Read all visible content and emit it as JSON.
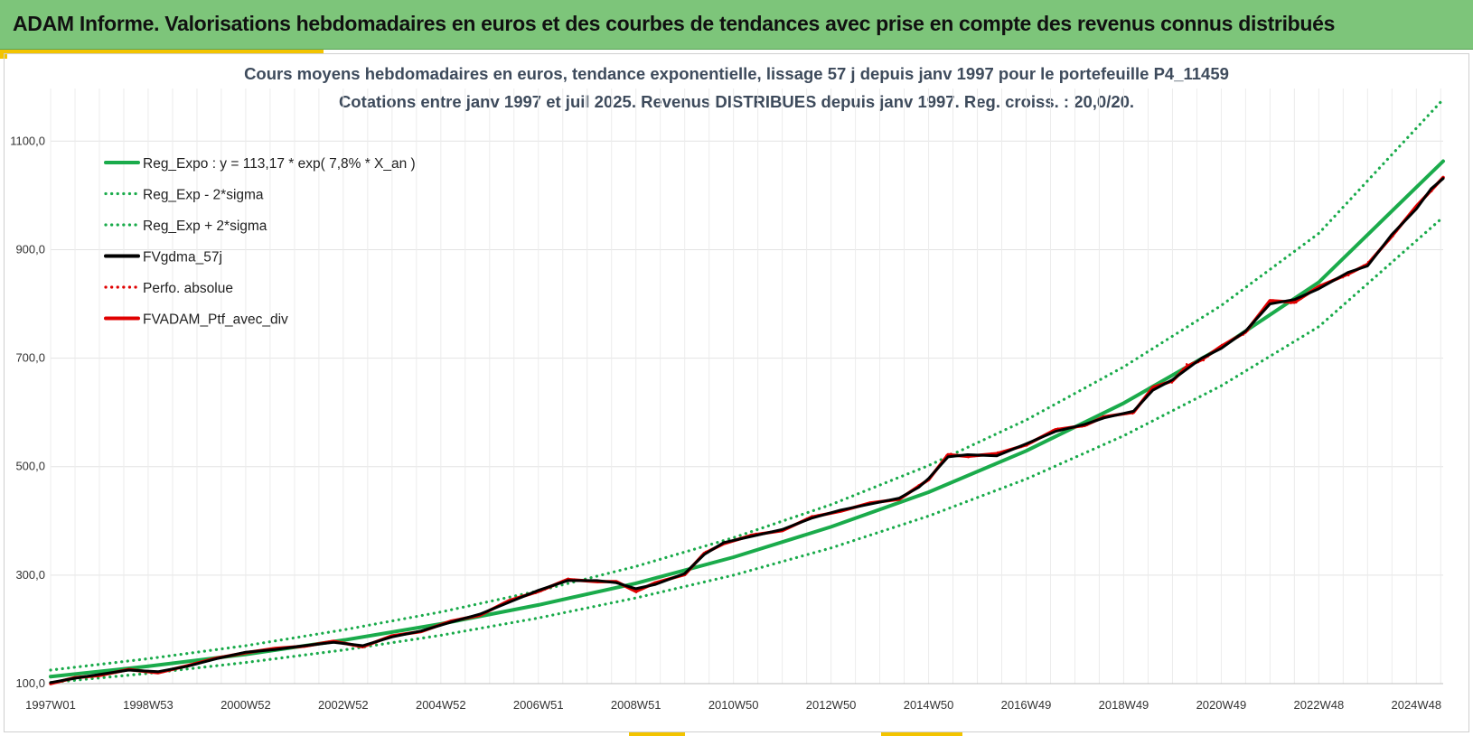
{
  "banner": {
    "title": "ADAM Informe. Valorisations hebdomadaires en euros et des courbes de tendances avec prise en compte des revenus connus distribués"
  },
  "chart_data": {
    "type": "line",
    "title": "Cours moyens hebdomadaires  en euros, tendance exponentielle, lissage 57 j depuis janv 1997 pour le portefeuille P4_11459",
    "subtitle": "Cotations  entre janv 1997 et juil 2025. Revenus DISTRIBUES depuis janv 1997. Reg. croiss. : 20,0/20.",
    "xlabel": "",
    "ylabel": "",
    "x_range": [
      1997.0,
      2025.55
    ],
    "ylim": [
      100,
      1200
    ],
    "yticks": [
      "100,0",
      "300,0",
      "500,0",
      "700,0",
      "900,0",
      "1100,0"
    ],
    "ytick_values": [
      100,
      300,
      500,
      700,
      900,
      1100
    ],
    "xticks": [
      {
        "label": "1997W01",
        "t": 1997.0
      },
      {
        "label": "1998W53",
        "t": 1999.0
      },
      {
        "label": "2000W52",
        "t": 2001.0
      },
      {
        "label": "2002W52",
        "t": 2003.0
      },
      {
        "label": "2004W52",
        "t": 2005.0
      },
      {
        "label": "2006W51",
        "t": 2007.0
      },
      {
        "label": "2008W51",
        "t": 2009.0
      },
      {
        "label": "2010W50",
        "t": 2011.0
      },
      {
        "label": "2012W50",
        "t": 2013.0
      },
      {
        "label": "2014W50",
        "t": 2015.0
      },
      {
        "label": "2016W49",
        "t": 2017.0
      },
      {
        "label": "2018W49",
        "t": 2019.0
      },
      {
        "label": "2020W49",
        "t": 2021.0
      },
      {
        "label": "2022W48",
        "t": 2023.0
      },
      {
        "label": "2024W48",
        "t": 2025.0
      }
    ],
    "grid": true,
    "legend_position": "top-left",
    "series": [
      {
        "name": "Reg_Expo : y = 113,17 * exp( 7,8% *  X_an )",
        "color": "#1aab4b",
        "style": "solid",
        "kind": "regression",
        "x": [
          1997.0,
          1999.0,
          2001.0,
          2003.0,
          2005.0,
          2007.0,
          2009.0,
          2011.0,
          2013.0,
          2015.0,
          2017.0,
          2019.0,
          2021.0,
          2023.0,
          2025.55
        ],
        "y": [
          113,
          132,
          154,
          180,
          210,
          245,
          285,
          333,
          389,
          453,
          529,
          617,
          720,
          840,
          1063
        ]
      },
      {
        "name": "Reg_Exp - 2*sigma",
        "color": "#1aab4b",
        "style": "dotted",
        "kind": "regression",
        "x": [
          1997.0,
          1999.0,
          2001.0,
          2003.0,
          2005.0,
          2007.0,
          2009.0,
          2011.0,
          2013.0,
          2015.0,
          2017.0,
          2019.0,
          2021.0,
          2023.0,
          2025.55
        ],
        "y": [
          102,
          119,
          139,
          162,
          189,
          221,
          258,
          300,
          350,
          409,
          477,
          557,
          649,
          758,
          960
        ]
      },
      {
        "name": "Reg_Exp + 2*sigma",
        "color": "#1aab4b",
        "style": "dotted",
        "kind": "regression",
        "x": [
          1997.0,
          1999.0,
          2001.0,
          2003.0,
          2005.0,
          2007.0,
          2009.0,
          2011.0,
          2013.0,
          2015.0,
          2017.0,
          2019.0,
          2021.0,
          2023.0,
          2025.55
        ],
        "y": [
          125,
          146,
          170,
          199,
          232,
          271,
          316,
          369,
          430,
          502,
          586,
          684,
          797,
          930,
          1177
        ]
      },
      {
        "name": "FVgdma_57j",
        "color": "#000000",
        "style": "solid",
        "kind": "smoothed",
        "x": [
          1997.0,
          1997.5,
          1998.0,
          1998.6,
          1999.2,
          1999.8,
          2000.4,
          2001.0,
          2001.6,
          2002.2,
          2002.8,
          2003.4,
          2004.0,
          2004.6,
          2005.2,
          2005.8,
          2006.4,
          2007.0,
          2007.6,
          2008.2,
          2008.6,
          2009.0,
          2009.4,
          2010.0,
          2010.4,
          2010.8,
          2011.4,
          2012.0,
          2012.6,
          2013.2,
          2013.8,
          2014.4,
          2014.8,
          2015.0,
          2015.4,
          2015.8,
          2016.4,
          2017.0,
          2017.6,
          2018.2,
          2018.6,
          2019.2,
          2019.6,
          2020.0,
          2020.3,
          2020.6,
          2021.0,
          2021.5,
          2022.0,
          2022.5,
          2023.0,
          2023.6,
          2024.0,
          2024.5,
          2025.0,
          2025.3,
          2025.55
        ],
        "y": [
          102,
          110,
          117,
          125,
          122,
          132,
          146,
          158,
          163,
          170,
          176,
          170,
          186,
          197,
          213,
          228,
          250,
          272,
          290,
          290,
          286,
          275,
          283,
          303,
          338,
          360,
          372,
          384,
          405,
          420,
          431,
          442,
          462,
          478,
          518,
          522,
          520,
          542,
          565,
          578,
          590,
          602,
          641,
          660,
          680,
          700,
          718,
          750,
          800,
          808,
          828,
          858,
          870,
          928,
          975,
          1012,
          1031
        ]
      },
      {
        "name": "Perfo. absolue",
        "color": "#e00000",
        "style": "dotted",
        "kind": "raw",
        "x": [
          1997.0,
          1997.5,
          1998.0,
          1998.6,
          1999.2,
          1999.8,
          2000.4,
          2001.0,
          2001.6,
          2002.2,
          2002.8,
          2003.4,
          2004.0,
          2004.6,
          2005.2,
          2005.8,
          2006.4,
          2007.0,
          2007.6,
          2008.2,
          2008.6,
          2009.0,
          2009.4,
          2010.0,
          2010.4,
          2010.8,
          2011.4,
          2012.0,
          2012.6,
          2013.2,
          2013.8,
          2014.4,
          2014.8,
          2015.0,
          2015.4,
          2015.8,
          2016.4,
          2017.0,
          2017.6,
          2018.2,
          2018.6,
          2019.2,
          2019.6,
          2020.0,
          2020.3,
          2020.6,
          2021.0,
          2021.5,
          2022.0,
          2022.5,
          2023.0,
          2023.6,
          2024.0,
          2024.5,
          2025.0,
          2025.3,
          2025.55
        ],
        "y": [
          101,
          112,
          116,
          127,
          119,
          134,
          148,
          156,
          166,
          168,
          179,
          167,
          189,
          195,
          216,
          225,
          254,
          268,
          294,
          287,
          289,
          268,
          287,
          300,
          342,
          357,
          376,
          381,
          409,
          417,
          434,
          439,
          466,
          474,
          525,
          517,
          526,
          538,
          570,
          574,
          594,
          598,
          648,
          655,
          690,
          693,
          724,
          745,
          808,
          800,
          834,
          852,
          876,
          922,
          982,
          1006,
          1034
        ]
      },
      {
        "name": "FVADAM_Ptf_avec_div",
        "color": "#e00000",
        "style": "solid",
        "kind": "raw",
        "x": [
          1997.0,
          1997.5,
          1998.0,
          1998.6,
          1999.2,
          1999.8,
          2000.4,
          2001.0,
          2001.6,
          2002.2,
          2002.8,
          2003.4,
          2004.0,
          2004.6,
          2005.2,
          2005.8,
          2006.4,
          2007.0,
          2007.6,
          2008.2,
          2008.6,
          2009.0,
          2009.4,
          2010.0,
          2010.4,
          2010.8,
          2011.4,
          2012.0,
          2012.6,
          2013.2,
          2013.8,
          2014.4,
          2014.8,
          2015.0,
          2015.4,
          2015.8,
          2016.4,
          2017.0,
          2017.6,
          2018.2,
          2018.6,
          2019.2,
          2019.6,
          2020.0,
          2020.3,
          2020.6,
          2021.0,
          2021.5,
          2022.0,
          2022.5,
          2023.0,
          2023.6,
          2024.0,
          2024.5,
          2025.0,
          2025.3,
          2025.55
        ],
        "y": [
          100,
          111,
          115,
          126,
          120,
          133,
          147,
          157,
          165,
          169,
          178,
          168,
          188,
          196,
          215,
          226,
          253,
          270,
          292,
          288,
          288,
          270,
          286,
          301,
          340,
          358,
          374,
          382,
          407,
          418,
          433,
          440,
          464,
          476,
          522,
          519,
          524,
          540,
          568,
          576,
          592,
          600,
          646,
          658,
          685,
          697,
          722,
          748,
          806,
          803,
          832,
          855,
          873,
          925,
          980,
          1009,
          1033
        ]
      }
    ]
  }
}
